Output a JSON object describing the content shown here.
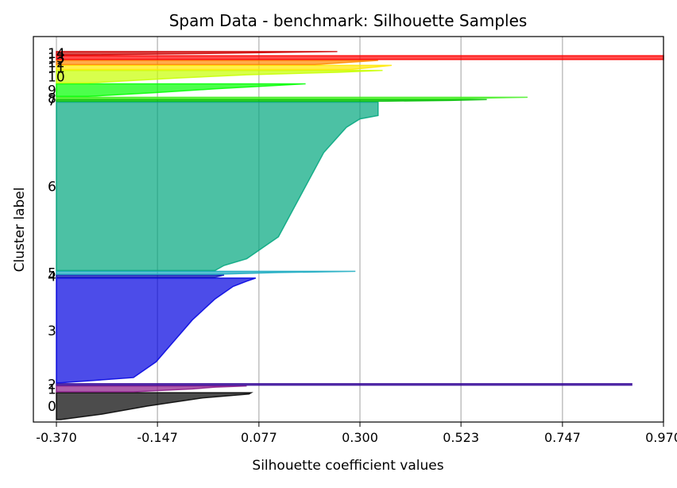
{
  "chart_data": {
    "type": "area",
    "title": "Spam Data - benchmark: Silhouette Samples",
    "xlabel": "Silhouette coefficient values",
    "ylabel": "Cluster label",
    "xlim": [
      -0.37,
      0.97
    ],
    "x_ticks": [
      "-0.370",
      "-0.147",
      "0.077",
      "0.300",
      "0.523",
      "0.747",
      "0.970"
    ],
    "x_tick_values": [
      -0.37,
      -0.147,
      0.077,
      0.3,
      0.523,
      0.747,
      0.97
    ],
    "grid": "x",
    "baseline_x": -0.37,
    "ylim": [
      0,
      4600
    ],
    "clusters": [
      {
        "label": "0",
        "color": "#000000",
        "size": 320,
        "max": 0.06,
        "profile": [
          [
            0,
            0.06
          ],
          [
            0.05,
            0.055
          ],
          [
            0.2,
            -0.05
          ],
          [
            0.5,
            -0.17
          ],
          [
            0.8,
            -0.27
          ],
          [
            1,
            -0.36
          ]
        ]
      },
      {
        "label": "1",
        "color": "#8b1a89",
        "size": 70,
        "max": 0.05,
        "profile": [
          [
            0,
            0.05
          ],
          [
            0.2,
            -0.02
          ],
          [
            0.5,
            -0.07
          ],
          [
            1,
            -0.2
          ]
        ]
      },
      {
        "label": "2",
        "color": "#3a0d9a",
        "size": 18,
        "max": 0.9,
        "profile": [
          [
            0,
            0.9
          ],
          [
            1,
            0.9
          ]
        ]
      },
      {
        "label": "3",
        "color": "#0000e0",
        "size": 1250,
        "max": 0.07,
        "profile": [
          [
            0,
            0.07
          ],
          [
            0.03,
            0.05
          ],
          [
            0.08,
            0.02
          ],
          [
            0.2,
            -0.02
          ],
          [
            0.4,
            -0.07
          ],
          [
            0.6,
            -0.11
          ],
          [
            0.8,
            -0.15
          ],
          [
            0.95,
            -0.2
          ],
          [
            1,
            -0.36
          ]
        ]
      },
      {
        "label": "4",
        "color": "#0a14b4",
        "size": 25,
        "max": 0.0,
        "profile": [
          [
            0,
            0.0
          ],
          [
            1,
            -0.02
          ]
        ]
      },
      {
        "label": "5",
        "color": "#17a9c0",
        "size": 35,
        "max": 0.29,
        "profile": [
          [
            0,
            0.29
          ],
          [
            0.4,
            0.12
          ],
          [
            1,
            -0.02
          ]
        ]
      },
      {
        "label": "6",
        "color": "#00a67e",
        "size": 2010,
        "max": 0.34,
        "profile": [
          [
            0,
            0.34
          ],
          [
            0.08,
            0.34
          ],
          [
            0.1,
            0.3
          ],
          [
            0.15,
            0.27
          ],
          [
            0.3,
            0.22
          ],
          [
            0.55,
            0.17
          ],
          [
            0.8,
            0.12
          ],
          [
            0.93,
            0.05
          ],
          [
            0.97,
            0.0
          ],
          [
            1,
            -0.02
          ]
        ]
      },
      {
        "label": "7",
        "color": "#00c000",
        "size": 20,
        "max": 0.58,
        "profile": [
          [
            0,
            0.58
          ],
          [
            0.5,
            0.5
          ],
          [
            1,
            0.35
          ]
        ]
      },
      {
        "label": "8",
        "color": "#44ee22",
        "size": 18,
        "max": 0.67,
        "profile": [
          [
            0,
            0.67
          ],
          [
            1,
            0.5
          ]
        ]
      },
      {
        "label": "9",
        "color": "#00ff00",
        "size": 150,
        "max": 0.18,
        "profile": [
          [
            0,
            0.18
          ],
          [
            0.2,
            0.08
          ],
          [
            0.4,
            -0.02
          ],
          [
            0.7,
            -0.15
          ],
          [
            1,
            -0.3
          ]
        ]
      },
      {
        "label": "10",
        "color": "#c8ff00",
        "size": 150,
        "max": 0.35,
        "profile": [
          [
            0,
            0.35
          ],
          [
            0.15,
            0.25
          ],
          [
            0.35,
            0.05
          ],
          [
            0.6,
            -0.1
          ],
          [
            1,
            -0.3
          ]
        ]
      },
      {
        "label": "11",
        "color": "#ffe800",
        "size": 50,
        "max": 0.37,
        "profile": [
          [
            0,
            0.37
          ],
          [
            1,
            0.28
          ]
        ]
      },
      {
        "label": "12",
        "color": "#ff8800",
        "size": 50,
        "max": 0.34,
        "profile": [
          [
            0,
            0.34
          ],
          [
            1,
            0.2
          ]
        ]
      },
      {
        "label": "13",
        "color": "#ff0000",
        "size": 45,
        "max": 0.97,
        "profile": [
          [
            0,
            0.97
          ],
          [
            1,
            0.97
          ]
        ]
      },
      {
        "label": "14",
        "color": "#cc0000",
        "size": 40,
        "max": 0.25,
        "profile": [
          [
            0,
            0.25
          ],
          [
            0.5,
            0.0
          ],
          [
            1,
            -0.3
          ]
        ]
      }
    ]
  }
}
